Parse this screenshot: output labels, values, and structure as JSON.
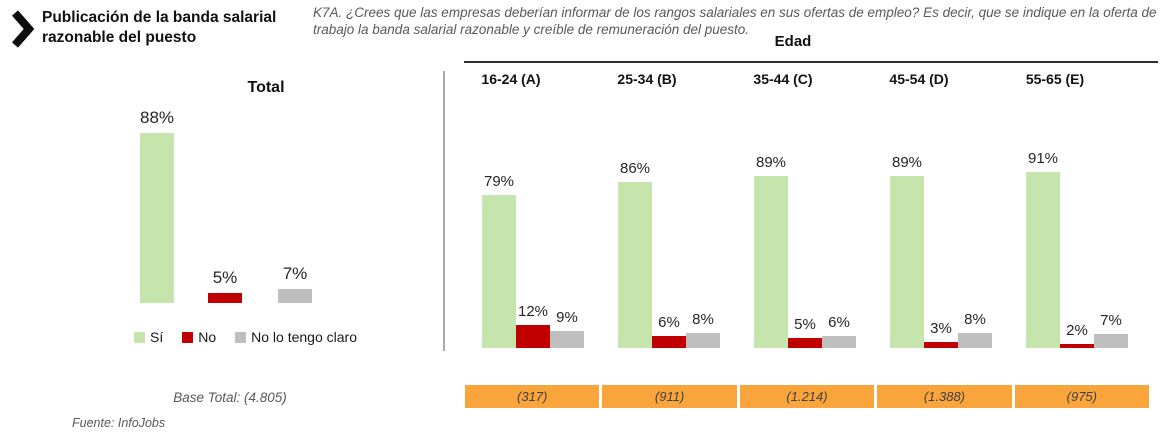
{
  "header": {
    "title": "Publicación de la banda salarial razonable del puesto",
    "question": "K7A. ¿Crees que las empresas deberían informar de los rangos salariales en sus ofertas de empleo? Es decir, que se indique en la oferta de trabajo la banda salarial razonable y creíble de remuneración del puesto."
  },
  "colors": {
    "si": "#c5e5ac",
    "no": "#c00000",
    "no_claro": "#bfbfbf",
    "base_cell": "#faa43c",
    "muted_text": "#595959"
  },
  "legend": {
    "items": [
      {
        "label": "Sí",
        "color_key": "si"
      },
      {
        "label": "No",
        "color_key": "no"
      },
      {
        "label": "No lo tengo claro",
        "color_key": "no_claro"
      }
    ]
  },
  "total_section": {
    "title": "Total",
    "base_label": "Base Total: (4.805)"
  },
  "age_section": {
    "header": "Edad"
  },
  "footer": {
    "source": "Fuente: InfoJobs"
  },
  "chart_data": {
    "type": "bar",
    "unit": "percent",
    "ylim": [
      0,
      100
    ],
    "grid": false,
    "legend_position": "bottom-left",
    "title": "Publicación de la banda salarial razonable del puesto",
    "series_names": [
      "Sí",
      "No",
      "No lo tengo claro"
    ],
    "total": {
      "category": "Total",
      "values": [
        88,
        5,
        7
      ],
      "base": "Base Total: (4.805)"
    },
    "by_age": {
      "axis_label": "Edad",
      "categories": [
        "16-24 (A)",
        "25-34 (B)",
        "35-44 (C)",
        "45-54 (D)",
        "55-65 (E)"
      ],
      "series": [
        {
          "name": "Sí",
          "values": [
            79,
            86,
            89,
            89,
            91
          ]
        },
        {
          "name": "No",
          "values": [
            12,
            6,
            5,
            3,
            2
          ]
        },
        {
          "name": "No lo tengo claro",
          "values": [
            9,
            8,
            6,
            8,
            7
          ]
        }
      ],
      "bases": [
        "(317)",
        "(911)",
        "(1.214)",
        "(1.388)",
        "(975)"
      ]
    }
  }
}
